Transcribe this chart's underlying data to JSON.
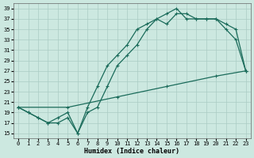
{
  "xlabel": "Humidex (Indice chaleur)",
  "bg_color": "#cce8e0",
  "grid_color": "#aaccc4",
  "line_color": "#1a6b5a",
  "xlim": [
    -0.5,
    23.5
  ],
  "ylim": [
    14,
    40
  ],
  "xticks": [
    0,
    1,
    2,
    3,
    4,
    5,
    6,
    7,
    8,
    9,
    10,
    11,
    12,
    13,
    14,
    15,
    16,
    17,
    18,
    19,
    20,
    21,
    22,
    23
  ],
  "yticks": [
    15,
    17,
    19,
    21,
    23,
    25,
    27,
    29,
    31,
    33,
    35,
    37,
    39
  ],
  "line1_x": [
    0,
    1,
    2,
    3,
    4,
    5,
    6,
    7,
    8,
    9,
    10,
    11,
    12,
    13,
    14,
    15,
    16,
    17,
    18,
    19,
    20,
    21,
    22,
    23
  ],
  "line1_y": [
    20,
    19,
    18,
    17,
    17,
    18,
    15,
    19,
    20,
    24,
    28,
    30,
    32,
    35,
    37,
    36,
    38,
    38,
    37,
    37,
    37,
    35,
    33,
    27
  ],
  "line2_x": [
    0,
    1,
    2,
    3,
    4,
    5,
    6,
    7,
    8,
    9,
    10,
    11,
    12,
    13,
    14,
    15,
    16,
    17,
    18,
    19,
    20,
    21,
    22,
    23
  ],
  "line2_y": [
    20,
    19,
    18,
    17,
    18,
    19,
    15,
    20,
    24,
    28,
    30,
    32,
    35,
    36,
    37,
    38,
    39,
    37,
    37,
    37,
    37,
    36,
    35,
    27
  ],
  "line3_x": [
    0,
    5,
    10,
    15,
    20,
    23
  ],
  "line3_y": [
    20,
    20,
    22,
    24,
    26,
    27
  ]
}
